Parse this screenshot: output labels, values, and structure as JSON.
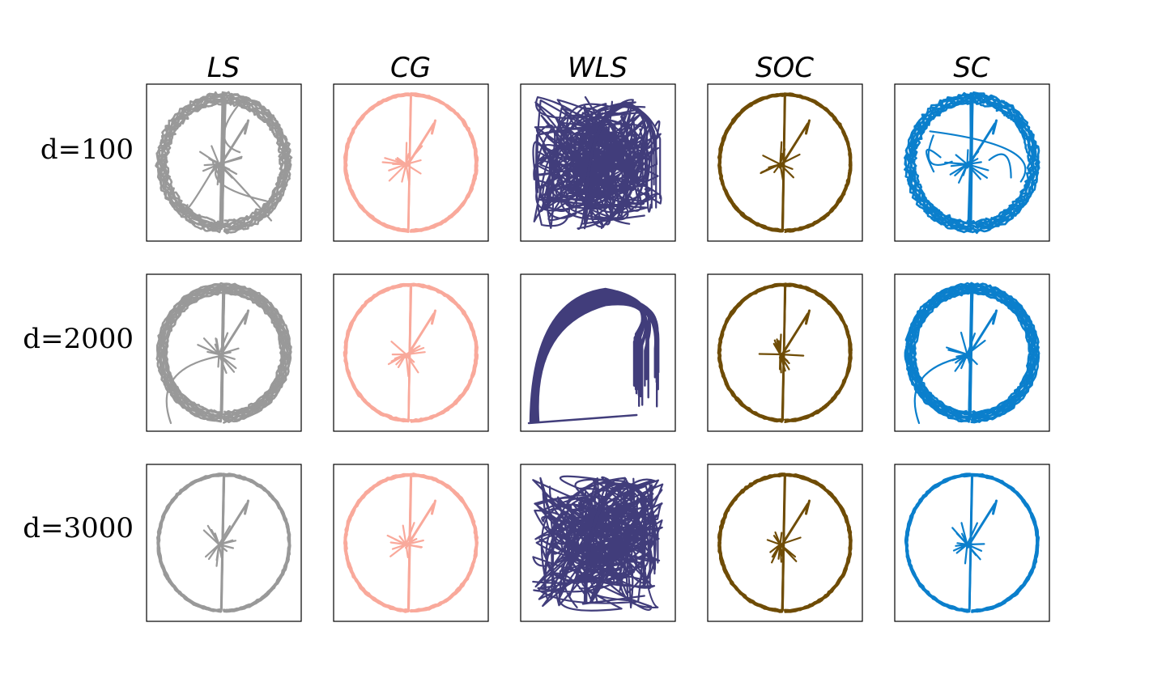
{
  "chart_data": {
    "type": "line",
    "layout": "grid 3 rows x 5 columns of trajectory panels, no axis ticks",
    "columns": [
      {
        "name": "LS",
        "color": "#999999"
      },
      {
        "name": "CG",
        "color": "#f9a99b"
      },
      {
        "name": "WLS",
        "color": "#413d7b"
      },
      {
        "name": "SOC",
        "color": "#6f4c06"
      },
      {
        "name": "SC",
        "color": "#0b7fcc"
      }
    ],
    "rows": [
      {
        "label": "d=100"
      },
      {
        "label": "d=2000"
      },
      {
        "label": "d=3000"
      }
    ],
    "panels": [
      {
        "row": "d=100",
        "column": "LS",
        "shape": "figure-eight",
        "quality": "distorted"
      },
      {
        "row": "d=100",
        "column": "CG",
        "shape": "figure-eight",
        "quality": "clean"
      },
      {
        "row": "d=100",
        "column": "WLS",
        "shape": "tangled",
        "quality": "failed"
      },
      {
        "row": "d=100",
        "column": "SOC",
        "shape": "figure-eight",
        "quality": "clean"
      },
      {
        "row": "d=100",
        "column": "SC",
        "shape": "figure-eight",
        "quality": "distorted"
      },
      {
        "row": "d=2000",
        "column": "LS",
        "shape": "figure-eight",
        "quality": "slightly distorted"
      },
      {
        "row": "d=2000",
        "column": "CG",
        "shape": "figure-eight",
        "quality": "clean"
      },
      {
        "row": "d=2000",
        "column": "WLS",
        "shape": "arch",
        "quality": "failed"
      },
      {
        "row": "d=2000",
        "column": "SOC",
        "shape": "figure-eight",
        "quality": "clean"
      },
      {
        "row": "d=2000",
        "column": "SC",
        "shape": "figure-eight",
        "quality": "slightly distorted"
      },
      {
        "row": "d=3000",
        "column": "LS",
        "shape": "figure-eight",
        "quality": "clean"
      },
      {
        "row": "d=3000",
        "column": "CG",
        "shape": "figure-eight",
        "quality": "clean"
      },
      {
        "row": "d=3000",
        "column": "WLS",
        "shape": "tangled",
        "quality": "failed"
      },
      {
        "row": "d=3000",
        "column": "SOC",
        "shape": "figure-eight",
        "quality": "clean"
      },
      {
        "row": "d=3000",
        "column": "SC",
        "shape": "figure-eight",
        "quality": "clean"
      }
    ],
    "xlabel": "",
    "ylabel": "",
    "grid": false
  }
}
